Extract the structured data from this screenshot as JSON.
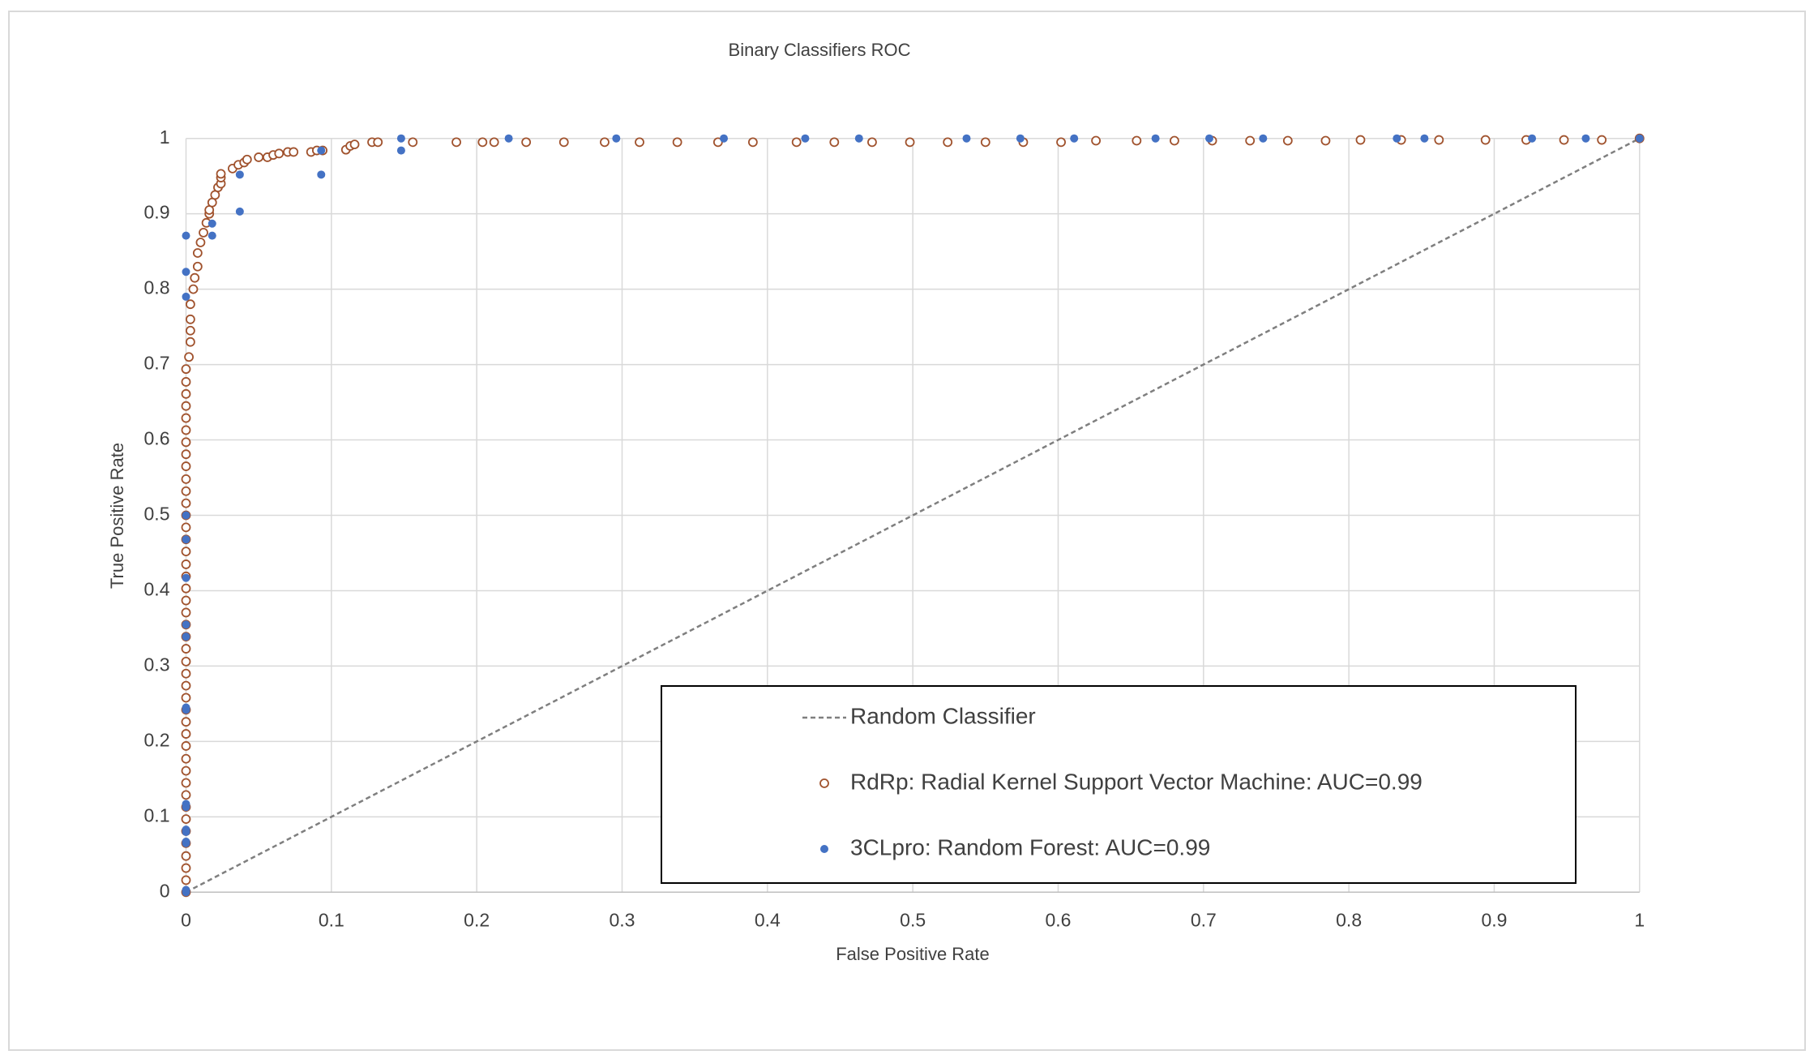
{
  "chart_data": {
    "type": "scatter",
    "title": "Binary Classifiers ROC",
    "x_label": "False Positive Rate",
    "y_label": "True Positive Rate",
    "xlim": [
      0,
      1
    ],
    "ylim": [
      0,
      1
    ],
    "xticks": [
      0,
      0.1,
      0.2,
      0.3,
      0.4,
      0.5,
      0.6,
      0.7,
      0.8,
      0.9,
      1
    ],
    "yticks": [
      0,
      0.1,
      0.2,
      0.3,
      0.4,
      0.5,
      0.6,
      0.7,
      0.8,
      0.9,
      1
    ],
    "grid": true,
    "legend": "lower right",
    "series": [
      {
        "name": "Random Classifier",
        "style": "dashed-line",
        "color": "#7f7f7f",
        "x": [
          0,
          1
        ],
        "values": [
          0,
          1
        ]
      },
      {
        "name": "RdRp: Radial Kernel Support Vector Machine: AUC=0.99",
        "style": "open-circle",
        "color": "#a0522d",
        "x": [
          0,
          0,
          0,
          0,
          0,
          0,
          0,
          0,
          0,
          0,
          0,
          0,
          0,
          0,
          0,
          0,
          0,
          0,
          0,
          0,
          0,
          0,
          0,
          0,
          0,
          0,
          0,
          0,
          0,
          0,
          0,
          0,
          0,
          0,
          0,
          0,
          0,
          0,
          0,
          0,
          0,
          0,
          0,
          0,
          0.002,
          0.003,
          0.003,
          0.003,
          0.003,
          0.005,
          0.006,
          0.008,
          0.008,
          0.01,
          0.012,
          0.014,
          0.016,
          0.016,
          0.018,
          0.02,
          0.022,
          0.024,
          0.024,
          0.024,
          0.032,
          0.036,
          0.04,
          0.042,
          0.05,
          0.056,
          0.06,
          0.064,
          0.07,
          0.074,
          0.086,
          0.09,
          0.094,
          0.11,
          0.113,
          0.116,
          0.128,
          0.132,
          0.156,
          0.186,
          0.204,
          0.212,
          0.234,
          0.26,
          0.288,
          0.312,
          0.338,
          0.366,
          0.39,
          0.42,
          0.446,
          0.472,
          0.498,
          0.524,
          0.55,
          0.576,
          0.602,
          0.626,
          0.654,
          0.68,
          0.706,
          0.732,
          0.758,
          0.784,
          0.808,
          0.836,
          0.862,
          0.894,
          0.922,
          0.948,
          0.974,
          1
        ],
        "values": [
          0,
          0.016,
          0.032,
          0.048,
          0.065,
          0.081,
          0.097,
          0.113,
          0.129,
          0.145,
          0.161,
          0.177,
          0.194,
          0.21,
          0.226,
          0.242,
          0.258,
          0.274,
          0.29,
          0.306,
          0.323,
          0.339,
          0.355,
          0.371,
          0.387,
          0.403,
          0.419,
          0.435,
          0.452,
          0.468,
          0.484,
          0.5,
          0.516,
          0.532,
          0.548,
          0.565,
          0.581,
          0.597,
          0.613,
          0.629,
          0.645,
          0.661,
          0.677,
          0.694,
          0.71,
          0.73,
          0.745,
          0.76,
          0.78,
          0.8,
          0.815,
          0.83,
          0.848,
          0.862,
          0.875,
          0.888,
          0.9,
          0.905,
          0.915,
          0.925,
          0.935,
          0.94,
          0.948,
          0.953,
          0.96,
          0.965,
          0.968,
          0.972,
          0.975,
          0.975,
          0.978,
          0.98,
          0.982,
          0.982,
          0.982,
          0.984,
          0.984,
          0.985,
          0.99,
          0.992,
          0.995,
          0.995,
          0.995,
          0.995,
          0.995,
          0.995,
          0.995,
          0.995,
          0.995,
          0.995,
          0.995,
          0.995,
          0.995,
          0.995,
          0.995,
          0.995,
          0.995,
          0.995,
          0.995,
          0.995,
          0.995,
          0.997,
          0.997,
          0.997,
          0.997,
          0.997,
          0.997,
          0.997,
          0.998,
          0.998,
          0.998,
          0.998,
          0.998,
          0.998,
          0.998,
          1
        ]
      },
      {
        "name": "3CLpro: Random Forest: AUC=0.99",
        "style": "filled-circle",
        "color": "#4472c4",
        "x": [
          0,
          0,
          0,
          0,
          0,
          0,
          0,
          0,
          0,
          0,
          0,
          0,
          0,
          0,
          0,
          0,
          0,
          0,
          0.018,
          0.018,
          0.037,
          0.037,
          0.093,
          0.093,
          0.148,
          0.148,
          0.222,
          0.296,
          0.37,
          0.426,
          0.463,
          0.537,
          0.574,
          0.611,
          0.667,
          0.704,
          0.741,
          0.833,
          0.852,
          0.926,
          0.963,
          1
        ],
        "values": [
          0,
          0.003,
          0.065,
          0.067,
          0.08,
          0.083,
          0.113,
          0.117,
          0.242,
          0.245,
          0.339,
          0.355,
          0.417,
          0.468,
          0.5,
          0.79,
          0.823,
          0.871,
          0.871,
          0.887,
          0.903,
          0.952,
          0.952,
          0.984,
          0.984,
          1,
          1,
          1,
          1,
          1,
          1,
          1,
          1,
          1,
          1,
          1,
          1,
          1,
          1,
          1,
          1,
          1
        ]
      }
    ]
  }
}
